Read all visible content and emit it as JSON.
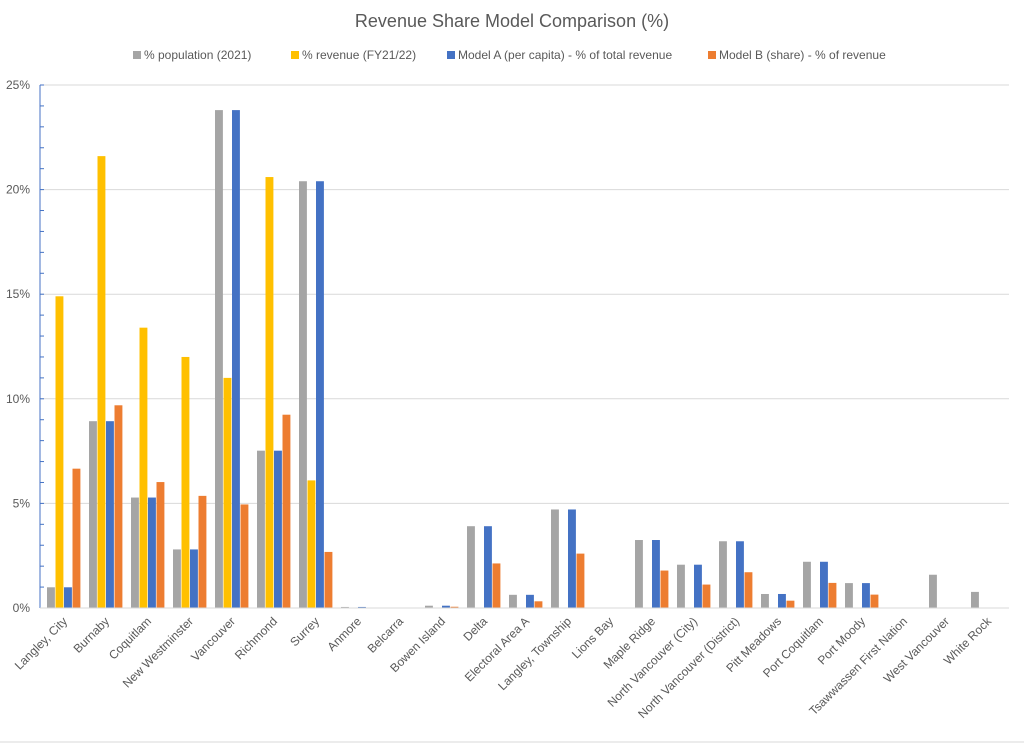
{
  "chart_data": {
    "type": "bar",
    "title": "Revenue Share Model Comparison (%)",
    "xlabel": "",
    "ylabel": "",
    "ylim": [
      0,
      25
    ],
    "yticks": [
      0,
      5,
      10,
      15,
      20,
      25
    ],
    "ytick_labels": [
      "0%",
      "5%",
      "10%",
      "15%",
      "20%",
      "25%"
    ],
    "grid": true,
    "legend_position": "top",
    "categories": [
      "Langley, City",
      "Burnaby",
      "Coquitlam",
      "New Westminster",
      "Vancouver",
      "Richmond",
      "Surrey",
      "Anmore",
      "Belcarra",
      "Bowen Island",
      "Delta",
      "Electoral Area A",
      "Langley, Township",
      "Lions Bay",
      "Maple Ridge",
      "North Vancouver (City)",
      "North Vancouver (District)",
      "Pitt Meadows",
      "Port Coquitlam",
      "Port Moody",
      "Tsawwassen First Nation",
      "West Vancouver",
      "White Rock"
    ],
    "series": [
      {
        "name": "% population (2021)",
        "color": "#A5A5A5",
        "values": [
          0.99,
          8.93,
          5.28,
          2.8,
          23.8,
          7.52,
          20.4,
          0.05,
          0,
          0.11,
          3.91,
          0.63,
          4.71,
          0,
          3.25,
          2.07,
          3.19,
          0.67,
          2.21,
          1.19,
          0,
          1.59,
          0.77
        ]
      },
      {
        "name": "% revenue (FY21/22)",
        "color": "#FFC000",
        "values": [
          14.9,
          21.6,
          13.4,
          12.0,
          11.0,
          20.6,
          6.1,
          0,
          0,
          0,
          0,
          0,
          0,
          0,
          0,
          0,
          0,
          0,
          0,
          0,
          0,
          0,
          0
        ]
      },
      {
        "name": "Model A (per capita) - % of total revenue",
        "color": "#4472C4",
        "values": [
          0.99,
          8.93,
          5.28,
          2.8,
          23.8,
          7.52,
          20.4,
          0.05,
          0,
          0.11,
          3.91,
          0.63,
          4.71,
          0,
          3.25,
          2.07,
          3.19,
          0.67,
          2.21,
          1.19,
          0,
          0,
          0
        ]
      },
      {
        "name": "Model B (share) - % of revenue",
        "color": "#ED7D31",
        "values": [
          6.66,
          9.69,
          6.02,
          5.36,
          4.95,
          9.24,
          2.68,
          0,
          0,
          0.06,
          2.13,
          0.32,
          2.6,
          0,
          1.79,
          1.12,
          1.71,
          0.35,
          1.2,
          0.64,
          0,
          0,
          0
        ]
      }
    ]
  }
}
